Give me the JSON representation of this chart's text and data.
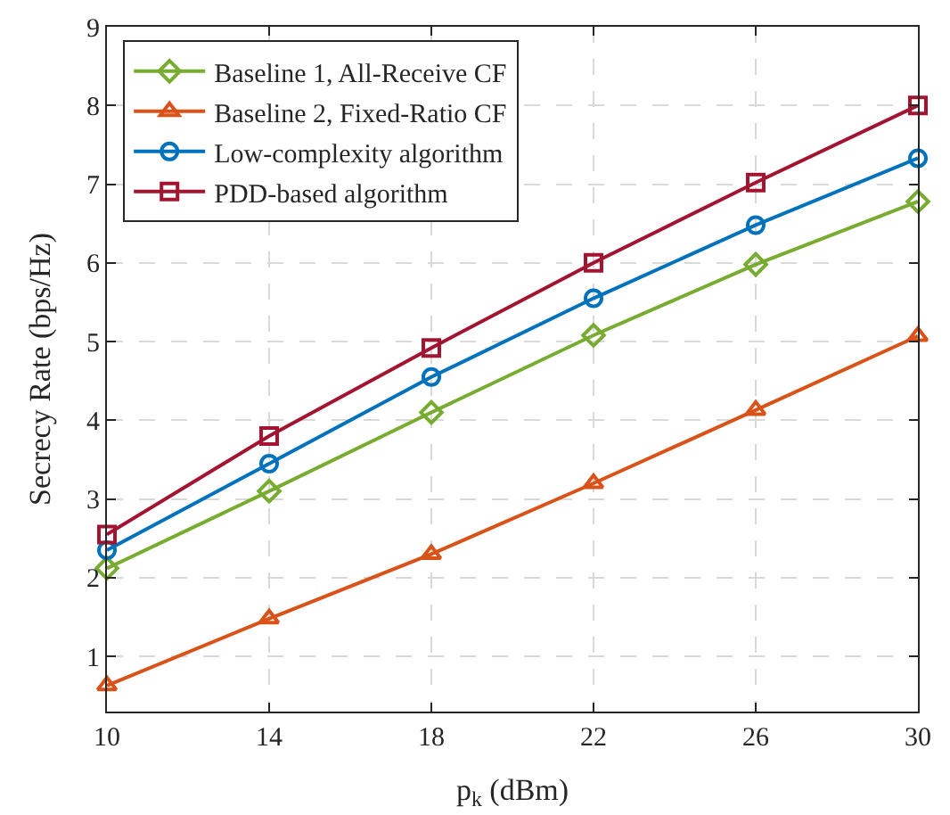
{
  "chart_data": {
    "type": "line",
    "xlabel": "p$_{k}$ (dBm)",
    "ylabel": "Secrecy Rate (bps/Hz)",
    "x": [
      10,
      14,
      18,
      22,
      26,
      30
    ],
    "series": [
      {
        "name": "Baseline 1, All-Receive CF",
        "color": "#77ac30",
        "marker": "diamond",
        "values": [
          2.12,
          3.1,
          4.1,
          5.08,
          5.98,
          6.78
        ]
      },
      {
        "name": "Baseline 2, Fixed-Ratio CF",
        "color": "#d95319",
        "marker": "triangle",
        "values": [
          0.63,
          1.48,
          2.3,
          3.2,
          4.13,
          5.07
        ]
      },
      {
        "name": "Low-complexity algorithm",
        "color": "#0072bd",
        "marker": "circle",
        "values": [
          2.35,
          3.45,
          4.55,
          5.55,
          6.48,
          7.33
        ]
      },
      {
        "name": "PDD-based algorithm",
        "color": "#a2142f",
        "marker": "square",
        "values": [
          2.55,
          3.8,
          4.92,
          6.0,
          7.02,
          8.0
        ]
      }
    ],
    "xlim": [
      10,
      30
    ],
    "xticks": [
      10,
      14,
      18,
      22,
      26,
      30
    ],
    "ylim": [
      0.3,
      9
    ],
    "yticks": [
      1,
      2,
      3,
      4,
      5,
      6,
      7,
      8,
      9
    ],
    "grid": true,
    "legend": "top left",
    "line_style": "solid"
  }
}
